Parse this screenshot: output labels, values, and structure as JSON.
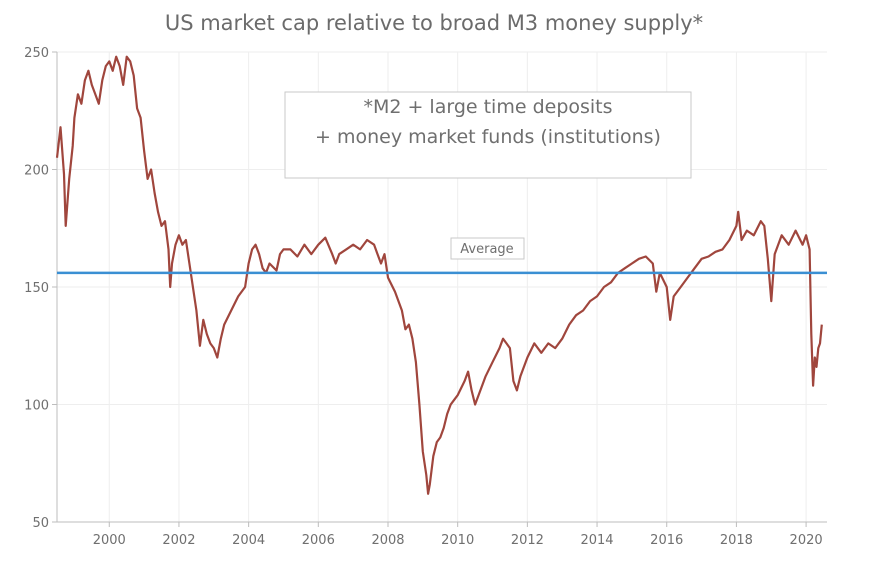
{
  "chart_data": {
    "type": "line",
    "title": "US market cap relative to broad M3 money supply*",
    "xlabel": "",
    "ylabel": "",
    "xlim": [
      1998.5,
      2020.6
    ],
    "ylim": [
      50,
      250
    ],
    "y_ticks": [
      50,
      100,
      150,
      200,
      250
    ],
    "x_ticks": [
      2000,
      2002,
      2004,
      2006,
      2008,
      2010,
      2012,
      2014,
      2016,
      2018,
      2020
    ],
    "grid": true,
    "footnote_lines": [
      "*M2 + large time deposits",
      "+ money market funds (institutions)"
    ],
    "average_label": "Average",
    "average_value": 156,
    "colors": {
      "series": "#a0463d",
      "average": "#3a8fd3",
      "text": "#6f6f6f",
      "grid": "#eeeeee",
      "axis": "#bdbdbd"
    },
    "series": [
      {
        "values": [
          [
            1998.5,
            205
          ],
          [
            1998.6,
            218
          ],
          [
            1998.7,
            198
          ],
          [
            1998.75,
            176
          ],
          [
            1998.85,
            196
          ],
          [
            1998.95,
            210
          ],
          [
            1999.0,
            222
          ],
          [
            1999.1,
            232
          ],
          [
            1999.2,
            228
          ],
          [
            1999.3,
            238
          ],
          [
            1999.4,
            242
          ],
          [
            1999.5,
            236
          ],
          [
            1999.6,
            232
          ],
          [
            1999.7,
            228
          ],
          [
            1999.8,
            238
          ],
          [
            1999.9,
            244
          ],
          [
            2000.0,
            246
          ],
          [
            2000.1,
            242
          ],
          [
            2000.2,
            248
          ],
          [
            2000.3,
            244
          ],
          [
            2000.4,
            236
          ],
          [
            2000.5,
            248
          ],
          [
            2000.6,
            246
          ],
          [
            2000.7,
            240
          ],
          [
            2000.8,
            226
          ],
          [
            2000.9,
            222
          ],
          [
            2001.0,
            208
          ],
          [
            2001.1,
            196
          ],
          [
            2001.2,
            200
          ],
          [
            2001.3,
            190
          ],
          [
            2001.4,
            182
          ],
          [
            2001.5,
            176
          ],
          [
            2001.6,
            178
          ],
          [
            2001.7,
            166
          ],
          [
            2001.75,
            150
          ],
          [
            2001.8,
            160
          ],
          [
            2001.9,
            168
          ],
          [
            2002.0,
            172
          ],
          [
            2002.1,
            168
          ],
          [
            2002.2,
            170
          ],
          [
            2002.3,
            160
          ],
          [
            2002.4,
            150
          ],
          [
            2002.5,
            140
          ],
          [
            2002.6,
            125
          ],
          [
            2002.7,
            136
          ],
          [
            2002.8,
            130
          ],
          [
            2002.9,
            126
          ],
          [
            2003.0,
            124
          ],
          [
            2003.1,
            120
          ],
          [
            2003.2,
            128
          ],
          [
            2003.3,
            134
          ],
          [
            2003.5,
            140
          ],
          [
            2003.7,
            146
          ],
          [
            2003.9,
            150
          ],
          [
            2004.0,
            160
          ],
          [
            2004.1,
            166
          ],
          [
            2004.2,
            168
          ],
          [
            2004.3,
            164
          ],
          [
            2004.4,
            158
          ],
          [
            2004.5,
            156
          ],
          [
            2004.6,
            160
          ],
          [
            2004.8,
            157
          ],
          [
            2004.9,
            164
          ],
          [
            2005.0,
            166
          ],
          [
            2005.2,
            166
          ],
          [
            2005.4,
            163
          ],
          [
            2005.6,
            168
          ],
          [
            2005.8,
            164
          ],
          [
            2006.0,
            168
          ],
          [
            2006.2,
            171
          ],
          [
            2006.4,
            164
          ],
          [
            2006.5,
            160
          ],
          [
            2006.6,
            164
          ],
          [
            2006.8,
            166
          ],
          [
            2007.0,
            168
          ],
          [
            2007.2,
            166
          ],
          [
            2007.4,
            170
          ],
          [
            2007.6,
            168
          ],
          [
            2007.7,
            164
          ],
          [
            2007.8,
            160
          ],
          [
            2007.9,
            164
          ],
          [
            2008.0,
            154
          ],
          [
            2008.2,
            148
          ],
          [
            2008.4,
            140
          ],
          [
            2008.5,
            132
          ],
          [
            2008.6,
            134
          ],
          [
            2008.7,
            128
          ],
          [
            2008.8,
            118
          ],
          [
            2008.9,
            100
          ],
          [
            2009.0,
            80
          ],
          [
            2009.1,
            70
          ],
          [
            2009.15,
            62
          ],
          [
            2009.2,
            66
          ],
          [
            2009.3,
            78
          ],
          [
            2009.4,
            84
          ],
          [
            2009.5,
            86
          ],
          [
            2009.6,
            90
          ],
          [
            2009.7,
            96
          ],
          [
            2009.8,
            100
          ],
          [
            2009.9,
            102
          ],
          [
            2010.0,
            104
          ],
          [
            2010.2,
            110
          ],
          [
            2010.3,
            114
          ],
          [
            2010.4,
            106
          ],
          [
            2010.5,
            100
          ],
          [
            2010.6,
            104
          ],
          [
            2010.8,
            112
          ],
          [
            2011.0,
            118
          ],
          [
            2011.2,
            124
          ],
          [
            2011.3,
            128
          ],
          [
            2011.4,
            126
          ],
          [
            2011.5,
            124
          ],
          [
            2011.6,
            110
          ],
          [
            2011.7,
            106
          ],
          [
            2011.8,
            112
          ],
          [
            2011.9,
            116
          ],
          [
            2012.0,
            120
          ],
          [
            2012.2,
            126
          ],
          [
            2012.4,
            122
          ],
          [
            2012.6,
            126
          ],
          [
            2012.8,
            124
          ],
          [
            2013.0,
            128
          ],
          [
            2013.2,
            134
          ],
          [
            2013.4,
            138
          ],
          [
            2013.6,
            140
          ],
          [
            2013.8,
            144
          ],
          [
            2014.0,
            146
          ],
          [
            2014.2,
            150
          ],
          [
            2014.4,
            152
          ],
          [
            2014.6,
            156
          ],
          [
            2014.8,
            158
          ],
          [
            2015.0,
            160
          ],
          [
            2015.2,
            162
          ],
          [
            2015.4,
            163
          ],
          [
            2015.6,
            160
          ],
          [
            2015.7,
            148
          ],
          [
            2015.8,
            156
          ],
          [
            2016.0,
            150
          ],
          [
            2016.1,
            136
          ],
          [
            2016.2,
            146
          ],
          [
            2016.4,
            150
          ],
          [
            2016.6,
            154
          ],
          [
            2016.8,
            158
          ],
          [
            2017.0,
            162
          ],
          [
            2017.2,
            163
          ],
          [
            2017.4,
            165
          ],
          [
            2017.6,
            166
          ],
          [
            2017.8,
            170
          ],
          [
            2018.0,
            176
          ],
          [
            2018.05,
            182
          ],
          [
            2018.15,
            170
          ],
          [
            2018.3,
            174
          ],
          [
            2018.5,
            172
          ],
          [
            2018.7,
            178
          ],
          [
            2018.8,
            176
          ],
          [
            2018.9,
            162
          ],
          [
            2019.0,
            144
          ],
          [
            2019.1,
            164
          ],
          [
            2019.3,
            172
          ],
          [
            2019.5,
            168
          ],
          [
            2019.7,
            174
          ],
          [
            2019.9,
            168
          ],
          [
            2020.0,
            172
          ],
          [
            2020.1,
            166
          ],
          [
            2020.15,
            130
          ],
          [
            2020.2,
            108
          ],
          [
            2020.25,
            120
          ],
          [
            2020.3,
            116
          ],
          [
            2020.35,
            124
          ],
          [
            2020.4,
            126
          ],
          [
            2020.45,
            134
          ]
        ]
      }
    ]
  }
}
